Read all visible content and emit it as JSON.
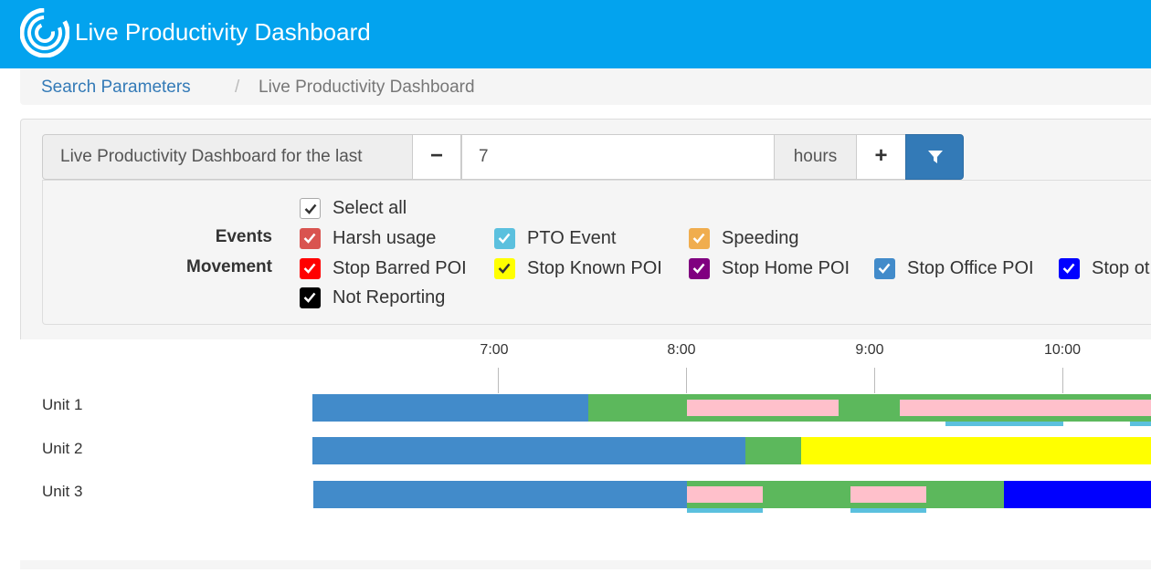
{
  "header": {
    "title": "Live Productivity Dashboard",
    "brand_color": "#03a3ee"
  },
  "breadcrumb": {
    "link": "Search Parameters",
    "separator": "/",
    "current": "Live Productivity Dashboard"
  },
  "controls": {
    "prefix": "Live Productivity Dashboard for the last",
    "minus": "−",
    "value": "7",
    "unit": "hours",
    "plus": "+",
    "filter_icon": "filter-icon"
  },
  "filters": {
    "row_labels": {
      "events": "Events",
      "movement": "Movement"
    },
    "select_all": {
      "label": "Select all",
      "color": "#ffffff",
      "checked": true
    },
    "events": [
      {
        "label": "Harsh usage",
        "color": "#d9534f"
      },
      {
        "label": "PTO Event",
        "color": "#5bc0de"
      },
      {
        "label": "Speeding",
        "color": "#f0ad4e"
      }
    ],
    "movement": [
      {
        "label": "Stop Barred POI",
        "color": "#ff0000"
      },
      {
        "label": "Stop Known POI",
        "color": "#ffff00"
      },
      {
        "label": "Stop Home POI",
        "color": "#800080"
      },
      {
        "label": "Stop Office POI",
        "color": "#428bca"
      },
      {
        "label": "Stop ot",
        "color": "#0000ff"
      }
    ],
    "extra": {
      "label": "Not Reporting",
      "color": "#000000"
    }
  },
  "timeline": {
    "axis_labels": [
      "7:00",
      "8:00",
      "9:00",
      "10:00"
    ],
    "units": [
      "Unit 1",
      "Unit 2",
      "Unit 3"
    ],
    "colors": {
      "office": "#428bca",
      "moving": "#5cb85c",
      "harsh": "#ffc0cb",
      "pto": "#5bc0de",
      "known": "#ffff00",
      "other": "#0000ff"
    }
  }
}
